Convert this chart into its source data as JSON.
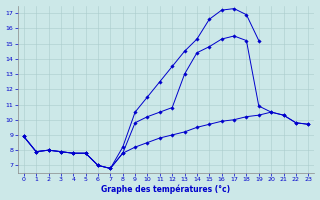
{
  "title": "Graphe des températures (°c)",
  "x": [
    0,
    1,
    2,
    3,
    4,
    5,
    6,
    7,
    8,
    9,
    10,
    11,
    12,
    13,
    14,
    15,
    16,
    17,
    18,
    19,
    20,
    21,
    22,
    23
  ],
  "line_low": [
    8.9,
    7.9,
    8.0,
    7.9,
    7.8,
    7.8,
    7.0,
    6.8,
    7.8,
    8.2,
    8.5,
    8.8,
    9.0,
    9.2,
    9.5,
    9.7,
    9.9,
    10.0,
    10.2,
    10.3,
    10.5,
    10.3,
    9.8,
    9.7
  ],
  "line_mid": [
    8.9,
    7.9,
    8.0,
    7.9,
    7.8,
    7.8,
    7.0,
    6.8,
    7.8,
    9.8,
    10.2,
    10.5,
    10.8,
    13.0,
    14.4,
    14.8,
    15.3,
    15.5,
    15.2,
    10.9,
    10.5,
    10.3,
    9.8,
    9.7
  ],
  "line_high": [
    8.9,
    7.9,
    8.0,
    7.9,
    7.8,
    7.8,
    7.0,
    6.8,
    8.2,
    10.5,
    11.5,
    12.5,
    13.5,
    14.5,
    15.3,
    16.6,
    17.2,
    17.3,
    16.9,
    15.2,
    null,
    null,
    null,
    null
  ],
  "ylim": [
    6.5,
    17.5
  ],
  "xlim": [
    -0.5,
    23.5
  ],
  "yticks": [
    7,
    8,
    9,
    10,
    11,
    12,
    13,
    14,
    15,
    16,
    17
  ],
  "xticks": [
    0,
    1,
    2,
    3,
    4,
    5,
    6,
    7,
    8,
    9,
    10,
    11,
    12,
    13,
    14,
    15,
    16,
    17,
    18,
    19,
    20,
    21,
    22,
    23
  ],
  "line_color": "#0000cc",
  "bg_color": "#cce8e8",
  "grid_color": "#aacccc",
  "marker": "D",
  "markersize": 1.8,
  "linewidth": 0.7
}
